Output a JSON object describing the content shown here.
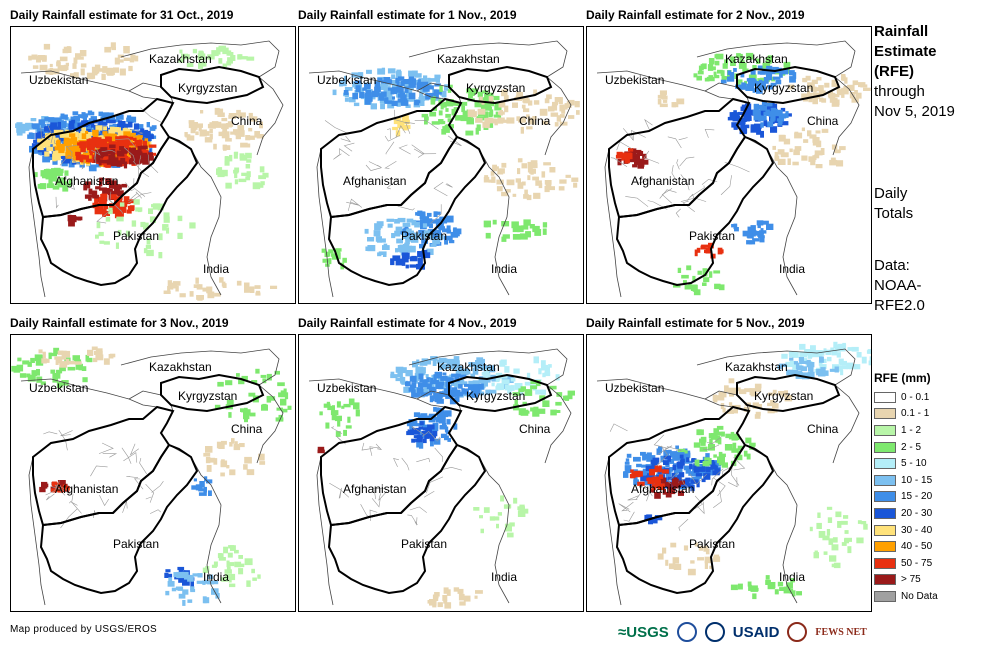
{
  "panels": [
    {
      "title": "Daily Rainfall estimate for 31 Oct., 2019"
    },
    {
      "title": "Daily Rainfall estimate for 1 Nov., 2019"
    },
    {
      "title": "Daily Rainfall estimate for 2 Nov., 2019"
    },
    {
      "title": "Daily Rainfall estimate for 3 Nov., 2019"
    },
    {
      "title": "Daily Rainfall estimate for 4 Nov., 2019"
    },
    {
      "title": "Daily Rainfall estimate for 5 Nov., 2019"
    }
  ],
  "country_labels": {
    "kazakhstan": "Kazakhstan",
    "uzbekistan": "Uzbekistan",
    "kyrgyzstan": "Kyrgyzstan",
    "china": "China",
    "afghanistan": "Afghanistan",
    "pakistan": "Pakistan",
    "india": "India"
  },
  "sidebar": {
    "title_bold_1": "Rainfall",
    "title_bold_2": "Estimate",
    "title_bold_3": "(RFE)",
    "title_line_4": "through",
    "title_line_5": "Nov 5, 2019",
    "daily_1": "Daily",
    "daily_2": "Totals",
    "data_1": "Data:",
    "data_2": "NOAA-",
    "data_3": "RFE2.0"
  },
  "legend": {
    "title": "RFE (mm)",
    "items": [
      {
        "label": "0 - 0.1",
        "color": "#ffffff"
      },
      {
        "label": "0.1 - 1",
        "color": "#e8d5b0"
      },
      {
        "label": "1 - 2",
        "color": "#b8f5a8"
      },
      {
        "label": "2 - 5",
        "color": "#7ee86e"
      },
      {
        "label": "5 - 10",
        "color": "#b4eef8"
      },
      {
        "label": "10 - 15",
        "color": "#7cc0f0"
      },
      {
        "label": "15 - 20",
        "color": "#3f8ee8"
      },
      {
        "label": "20 - 30",
        "color": "#1a56d8"
      },
      {
        "label": "30 - 40",
        "color": "#ffe27a"
      },
      {
        "label": "40 - 50",
        "color": "#ffa000"
      },
      {
        "label": "50 - 75",
        "color": "#e83010"
      },
      {
        "label": "> 75",
        "color": "#9a1a1a"
      },
      {
        "label": "No Data",
        "color": "#a0a0a0"
      }
    ]
  },
  "footer": {
    "credit": "Map produced by USGS/EROS",
    "logo_usgs": "≈USGS",
    "logo_usaid": "USAID",
    "logo_fews": "FEWS NET"
  }
}
